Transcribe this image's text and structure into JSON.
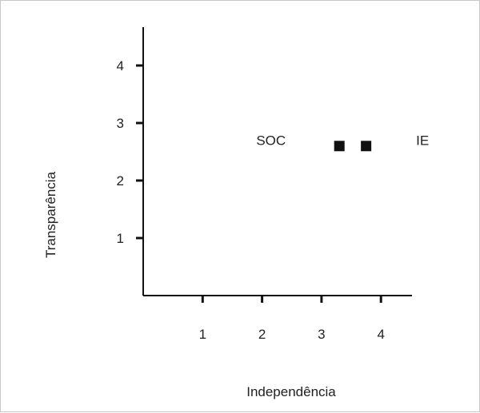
{
  "chart_data": {
    "type": "scatter",
    "title": "",
    "xlabel": "Independência",
    "ylabel": "Transparência",
    "xlim": [
      0,
      4.5
    ],
    "ylim": [
      0,
      4.5
    ],
    "x_ticks": [
      "1",
      "2",
      "3",
      "4"
    ],
    "y_ticks": [
      "1",
      "2",
      "3",
      "4"
    ],
    "points": [
      {
        "x": 3.3,
        "y": 2.6
      },
      {
        "x": 3.75,
        "y": 2.6
      }
    ],
    "annotations": [
      {
        "text": "SOC",
        "x": 2.15,
        "y": 2.7
      },
      {
        "text": "IE",
        "x": 4.7,
        "y": 2.7
      }
    ],
    "grid": false,
    "marker": "square",
    "color": "#111111"
  }
}
